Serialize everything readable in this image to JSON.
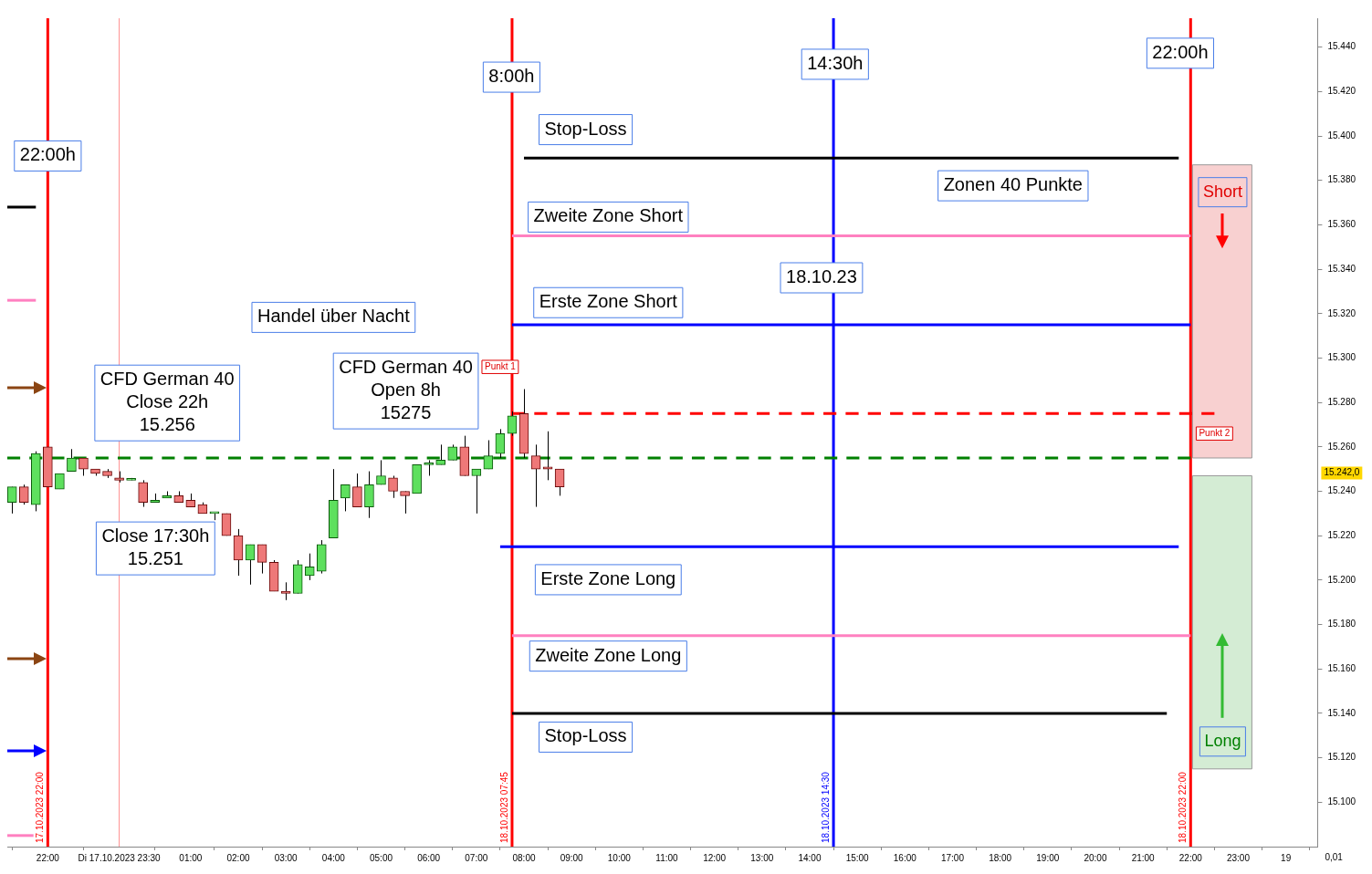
{
  "chart_data": {
    "type": "candlestick",
    "x": [
      "2023-10-17T21:15",
      "2023-10-17T21:30",
      "2023-10-17T21:45",
      "2023-10-17T22:00",
      "2023-10-17T22:15",
      "2023-10-17T22:30",
      "2023-10-17T22:45",
      "2023-10-17T23:00",
      "2023-10-17T23:15",
      "2023-10-17T23:30",
      "2023-10-17T23:45",
      "2023-10-18T00:00",
      "2023-10-18T00:15",
      "2023-10-18T00:30",
      "2023-10-18T00:45",
      "2023-10-18T01:00",
      "2023-10-18T01:15",
      "2023-10-18T01:30",
      "2023-10-18T01:45",
      "2023-10-18T02:00",
      "2023-10-18T02:15",
      "2023-10-18T02:30",
      "2023-10-18T02:45",
      "2023-10-18T03:00",
      "2023-10-18T03:15",
      "2023-10-18T03:30",
      "2023-10-18T03:45",
      "2023-10-18T04:00",
      "2023-10-18T04:15",
      "2023-10-18T04:30",
      "2023-10-18T04:45",
      "2023-10-18T05:00",
      "2023-10-18T05:15",
      "2023-10-18T05:30",
      "2023-10-18T05:45",
      "2023-10-18T06:00",
      "2023-10-18T06:15",
      "2023-10-18T06:30",
      "2023-10-18T06:45",
      "2023-10-18T07:00",
      "2023-10-18T07:15",
      "2023-10-18T07:30",
      "2023-10-18T07:45",
      "2023-10-18T08:00",
      "2023-10-18T08:15",
      "2023-10-18T08:30",
      "2023-10-18T08:45"
    ],
    "ohlc": [
      [
        15235,
        15242,
        15230,
        15242
      ],
      [
        15242,
        15243,
        15234,
        15235
      ],
      [
        15234,
        15258,
        15231,
        15257
      ],
      [
        15260,
        15260,
        15242,
        15242
      ],
      [
        15241,
        15248,
        15241,
        15248
      ],
      [
        15249,
        15259,
        15249,
        15255
      ],
      [
        15255,
        15255,
        15247,
        15250
      ],
      [
        15250,
        15250,
        15247,
        15248
      ],
      [
        15249,
        15250,
        15246,
        15247
      ],
      [
        15246,
        15249,
        15244,
        15245
      ],
      [
        15245,
        15246,
        15245,
        15245
      ],
      [
        15244,
        15245,
        15233,
        15235
      ],
      [
        15235,
        15239,
        15235,
        15236
      ],
      [
        15237,
        15240,
        15237,
        15238
      ],
      [
        15238,
        15240,
        15235,
        15235
      ],
      [
        15236,
        15239,
        15233,
        15233
      ],
      [
        15234,
        15235,
        15230,
        15230
      ],
      [
        15230,
        15230,
        15227,
        15230
      ],
      [
        15230,
        15230,
        15220,
        15220
      ],
      [
        15220,
        15223,
        15202,
        15209
      ],
      [
        15209,
        15216,
        15198,
        15216
      ],
      [
        15216,
        15216,
        15203,
        15208
      ],
      [
        15208,
        15209,
        15195,
        15195
      ],
      [
        15195,
        15199,
        15191,
        15194
      ],
      [
        15194,
        15209,
        15194,
        15207
      ],
      [
        15202,
        15212,
        15200,
        15206
      ],
      [
        15204,
        15218,
        15203,
        15216
      ],
      [
        15219,
        15250,
        15219,
        15236
      ],
      [
        15237,
        15243,
        15231,
        15243
      ],
      [
        15242,
        15248,
        15233,
        15233
      ],
      [
        15233,
        15249,
        15228,
        15243
      ],
      [
        15243,
        15254,
        15243,
        15247
      ],
      [
        15246,
        15247,
        15237,
        15240
      ],
      [
        15240,
        15240,
        15230,
        15238
      ],
      [
        15239,
        15252,
        15239,
        15252
      ],
      [
        15252,
        15254,
        15247,
        15252
      ],
      [
        15252,
        15261,
        15252,
        15254
      ],
      [
        15254,
        15261,
        15254,
        15260
      ],
      [
        15260,
        15265,
        15247,
        15247
      ],
      [
        15247,
        15250,
        15230,
        15250
      ],
      [
        15250,
        15263,
        15250,
        15256
      ],
      [
        15257,
        15268,
        15255,
        15266
      ],
      [
        15266,
        15276,
        15265,
        15274
      ],
      [
        15275,
        15286,
        15255,
        15257
      ],
      [
        15256,
        15261,
        15233,
        15250
      ],
      [
        15251,
        15267,
        15245,
        15250
      ],
      [
        15250,
        15250,
        15238,
        15242
      ]
    ],
    "series": [
      {
        "type": "line",
        "x": [
          "2023-10-18T08:00",
          "2023-10-18T21:45"
        ],
        "values": [
          15390,
          15390
        ],
        "color": "#000000"
      },
      {
        "type": "line",
        "x": [
          "2023-10-17T21:09",
          "2023-10-17T21:45"
        ],
        "values": [
          15368,
          15368
        ],
        "color": "#000000"
      },
      {
        "type": "line",
        "x": [
          "2023-10-18T07:45",
          "2023-10-18T22:00"
        ],
        "values": [
          15355,
          15355
        ],
        "color": "#ff80c0"
      },
      {
        "type": "line",
        "x": [
          "2023-10-17T21:09",
          "2023-10-17T21:45"
        ],
        "values": [
          15326,
          15326
        ],
        "color": "#ff80c0"
      },
      {
        "type": "line",
        "x": [
          "2023-10-18T07:45",
          "2023-10-18T22:00"
        ],
        "values": [
          15315,
          15315
        ],
        "color": "#0000ff"
      },
      {
        "type": "line",
        "x": [
          "2023-10-18T07:45",
          "2023-10-18T22:30"
        ],
        "values": [
          15275,
          15275
        ],
        "color": "#ff0000",
        "line_style": "dashed"
      },
      {
        "type": "line",
        "x": [
          "2023-10-17T21:09",
          "2023-10-18T22:00"
        ],
        "values": [
          15255,
          15255
        ],
        "color": "#008000",
        "line_style": "dashed"
      },
      {
        "type": "line",
        "x": [
          "2023-10-18T07:30",
          "2023-10-18T21:45"
        ],
        "values": [
          15215,
          15215
        ],
        "color": "#0000ff"
      },
      {
        "type": "line",
        "x": [
          "2023-10-18T07:45",
          "2023-10-18T22:00"
        ],
        "values": [
          15175,
          15175
        ],
        "color": "#ff80c0"
      },
      {
        "type": "line",
        "x": [
          "2023-10-18T07:45",
          "2023-10-18T21:30"
        ],
        "values": [
          15140,
          15140
        ],
        "color": "#000000"
      },
      {
        "type": "line",
        "x": [
          "2023-10-17T21:09",
          "2023-10-17T21:42"
        ],
        "values": [
          15085,
          15085
        ],
        "color": "#ff80c0"
      }
    ],
    "xlim": [
      "2023-10-17T21:09",
      "2023-10-19T00:40"
    ],
    "xticks": [
      {
        "value": "2023-10-17T22:00",
        "label": "22:00"
      },
      {
        "value": "2023-10-17T23:30",
        "label": "Di 17.10.2023 23:30"
      },
      {
        "value": "2023-10-18T01:00",
        "label": "01:00"
      },
      {
        "value": "2023-10-18T02:00",
        "label": "02:00"
      },
      {
        "value": "2023-10-18T03:00",
        "label": "03:00"
      },
      {
        "value": "2023-10-18T04:00",
        "label": "04:00"
      },
      {
        "value": "2023-10-18T05:00",
        "label": "05:00"
      },
      {
        "value": "2023-10-18T06:00",
        "label": "06:00"
      },
      {
        "value": "2023-10-18T07:00",
        "label": "07:00"
      },
      {
        "value": "2023-10-18T08:00",
        "label": "08:00"
      },
      {
        "value": "2023-10-18T09:00",
        "label": "09:00"
      },
      {
        "value": "2023-10-18T10:00",
        "label": "10:00"
      },
      {
        "value": "2023-10-18T11:00",
        "label": "11:00"
      },
      {
        "value": "2023-10-18T12:00",
        "label": "12:00"
      },
      {
        "value": "2023-10-18T13:00",
        "label": "13:00"
      },
      {
        "value": "2023-10-18T14:00",
        "label": "14:00"
      },
      {
        "value": "2023-10-18T15:00",
        "label": "15:00"
      },
      {
        "value": "2023-10-18T16:00",
        "label": "16:00"
      },
      {
        "value": "2023-10-18T17:00",
        "label": "17:00"
      },
      {
        "value": "2023-10-18T18:00",
        "label": "18:00"
      },
      {
        "value": "2023-10-18T19:00",
        "label": "19:00"
      },
      {
        "value": "2023-10-18T20:00",
        "label": "20:00"
      },
      {
        "value": "2023-10-18T21:00",
        "label": "21:00"
      },
      {
        "value": "2023-10-18T22:00",
        "label": "22:00"
      },
      {
        "value": "2023-10-18T23:00",
        "label": "23:00"
      },
      {
        "value": "2023-10-19T00:00",
        "label": "19"
      }
    ],
    "ylim": [
      15080,
      15453
    ],
    "yticks": [
      {
        "value": 15100,
        "label": "15.100"
      },
      {
        "value": 15120,
        "label": "15.120"
      },
      {
        "value": 15140,
        "label": "15.140"
      },
      {
        "value": 15160,
        "label": "15.160"
      },
      {
        "value": 15180,
        "label": "15.180"
      },
      {
        "value": 15200,
        "label": "15.200"
      },
      {
        "value": 15220,
        "label": "15.220"
      },
      {
        "value": 15240,
        "label": "15.240"
      },
      {
        "value": 15260,
        "label": "15.260"
      },
      {
        "value": 15280,
        "label": "15.280"
      },
      {
        "value": 15300,
        "label": "15.300"
      },
      {
        "value": 15320,
        "label": "15.320"
      },
      {
        "value": 15340,
        "label": "15.340"
      },
      {
        "value": 15360,
        "label": "15.360"
      },
      {
        "value": 15380,
        "label": "15.380"
      },
      {
        "value": 15400,
        "label": "15.400"
      },
      {
        "value": 15420,
        "label": "15.420"
      },
      {
        "value": 15440,
        "label": "15.440"
      }
    ],
    "ref_lines": [
      {
        "axis": "x",
        "value": "2023-10-17T22:00",
        "label": "17.10.2023 22:00",
        "color": "#ff0000"
      },
      {
        "axis": "x",
        "value": "2023-10-17T23:30",
        "color": "#ff9090"
      },
      {
        "axis": "x",
        "value": "2023-10-18T07:45",
        "label": "18.10.2023 07:45",
        "color": "#ff0000"
      },
      {
        "axis": "x",
        "value": "2023-10-18T14:30",
        "label": "18.10.2023 14:30",
        "color": "#0000ff"
      },
      {
        "axis": "x",
        "value": "2023-10-18T22:00",
        "label": "18.10.2023 22:00",
        "color": "#ff0000"
      }
    ],
    "bands": [
      {
        "axis": "y",
        "from": 15255,
        "to": 15387,
        "label": "Short",
        "color": "#f8d0d0"
      },
      {
        "axis": "y",
        "from": 15115,
        "to": 15247,
        "label": "Long",
        "color": "#d4ecd4"
      }
    ],
    "annotations": [
      {
        "text": "22:00h",
        "x": "2023-10-17T22:00",
        "y": 15391
      },
      "8:00h",
      "14:30h",
      "22:00h",
      "Stop-Loss",
      "Zweite Zone Short",
      "Erste Zone Short",
      "Zonen 40 Punkte",
      "18.10.23",
      "Handel über Nacht",
      "CFD German 40\nClose 22h\n15.256",
      "CFD German 40\nOpen 8h\n15275",
      "Close 17:30h\n15.251",
      "Erste Zone Long",
      "Zweite Zone Long",
      "Stop-Loss",
      {
        "text": "Punkt 1",
        "x": "2023-10-18T07:30",
        "y": 15296
      },
      {
        "text": "Punkt 2",
        "x": "2023-10-18T22:30",
        "y": 15266
      },
      "15.242,0",
      "0,01"
    ],
    "grid": false,
    "legend": false
  }
}
